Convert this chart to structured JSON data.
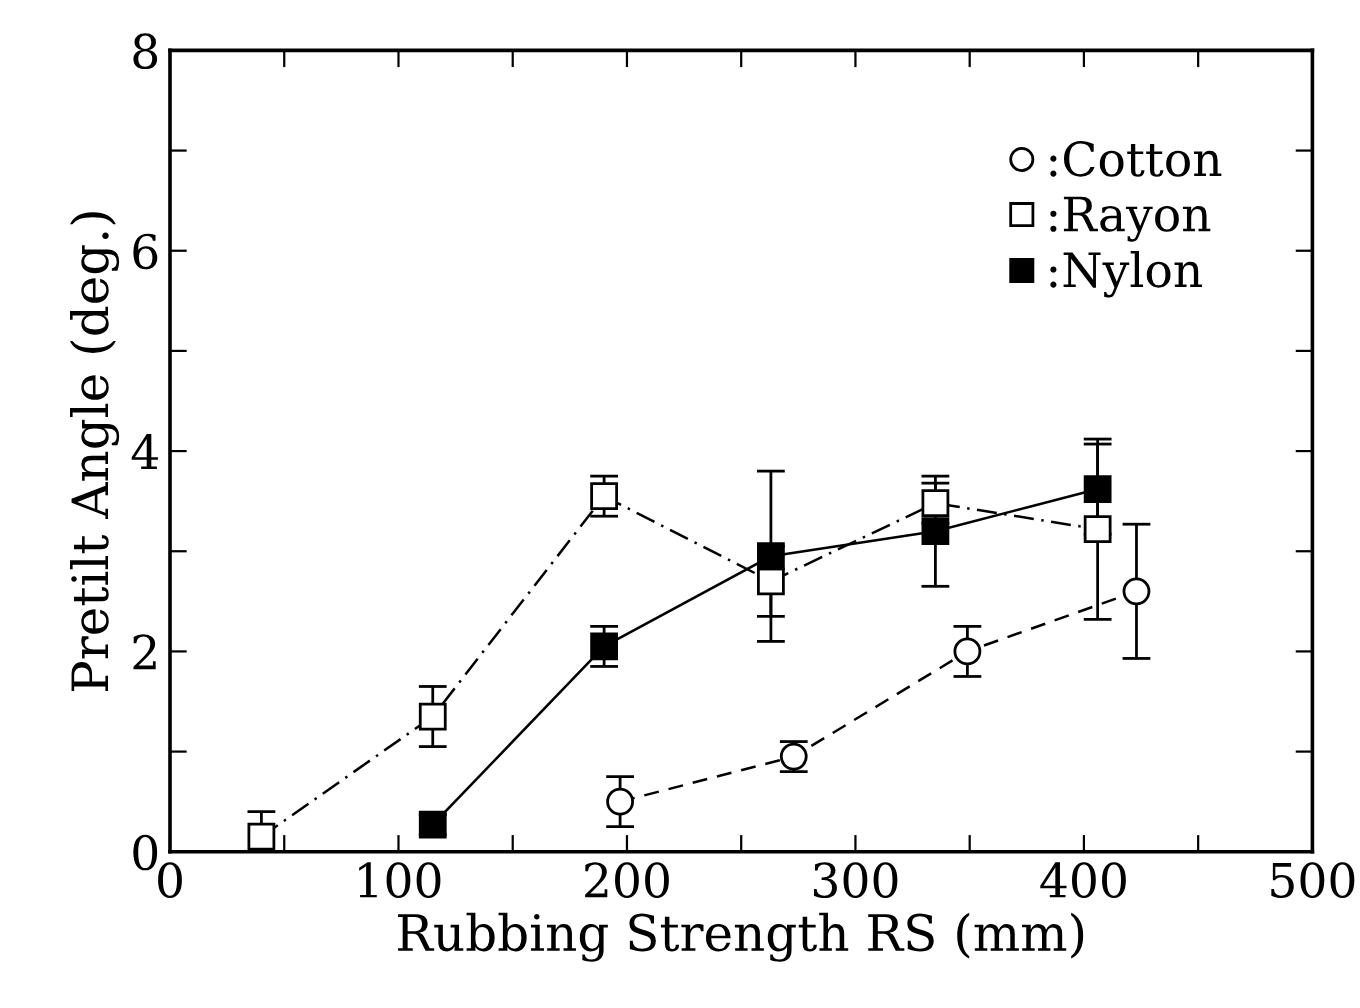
{
  "chart_data": {
    "type": "line",
    "xlabel": "Rubbing Strength RS (mm)",
    "ylabel": "Pretilt Angle (deg.)",
    "xlim": [
      0,
      500
    ],
    "ylim": [
      0,
      8
    ],
    "xticks": [
      0,
      {
        "value": 50,
        "label": null
      },
      100,
      {
        "value": 150,
        "label": null
      },
      200,
      {
        "value": 250,
        "label": null
      },
      300,
      {
        "value": 350,
        "label": null
      },
      400,
      {
        "value": 450,
        "label": null
      },
      500
    ],
    "yticks": [
      0,
      {
        "value": 1,
        "label": null
      },
      2,
      {
        "value": 3,
        "label": null
      },
      4,
      {
        "value": 5,
        "label": null
      },
      6,
      {
        "value": 7,
        "label": null
      },
      8
    ],
    "grid": false,
    "legend": "top right",
    "series": [
      {
        "name": ":Cotton",
        "color": "#ffffff",
        "marker": "circle",
        "line_style": "dashed",
        "x": [
          197,
          273,
          349,
          423
        ],
        "values": [
          0.5,
          0.95,
          2.0,
          2.6
        ],
        "errors": [
          0.25,
          0.15,
          0.25,
          0.67
        ]
      },
      {
        "name": ":Rayon",
        "color": "#ffffff",
        "marker": "square",
        "line_style": "dashdot",
        "x": [
          40,
          115,
          190,
          263,
          335,
          406
        ],
        "values": [
          0.15,
          1.35,
          3.55,
          2.7,
          3.48,
          3.22
        ],
        "errors": [
          0.25,
          0.3,
          0.2,
          0.35,
          0.2,
          0.9
        ]
      },
      {
        "name": ":Nylon",
        "color": "#000000",
        "marker": "square",
        "line_style": "solid",
        "x": [
          115,
          190,
          263,
          335,
          406
        ],
        "values": [
          0.27,
          2.05,
          2.95,
          3.2,
          3.62
        ],
        "errors": [
          0.1,
          0.2,
          0.85,
          0.55,
          0.45
        ]
      }
    ]
  }
}
